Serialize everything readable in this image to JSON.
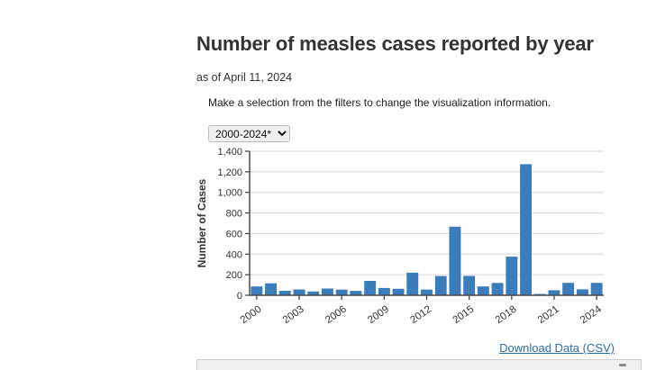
{
  "page": {
    "title": "Number of measles cases reported by year",
    "as_of": "as of April 11, 2024",
    "instruction": "Make a selection from the filters to change the visualization information.",
    "filter_value": "2000-2024*",
    "download_link": "Download Data (CSV)"
  },
  "colors": {
    "bar": "#3a7cbc",
    "grid": "#d8d8d8",
    "axis": "#4a4a4a",
    "tick_text": "#333333",
    "link": "#2a6fac"
  },
  "chart_data": {
    "type": "bar",
    "title": "",
    "xlabel": "",
    "ylabel": "Number of Cases",
    "ylim": [
      0,
      1400
    ],
    "ytick_step": 200,
    "grid": true,
    "legend": false,
    "x_tick_labels": [
      "2000",
      "2003",
      "2006",
      "2009",
      "2012",
      "2015",
      "2018",
      "2021",
      "2024"
    ],
    "categories": [
      2000,
      2001,
      2002,
      2003,
      2004,
      2005,
      2006,
      2007,
      2008,
      2009,
      2010,
      2011,
      2012,
      2013,
      2014,
      2015,
      2016,
      2017,
      2018,
      2019,
      2020,
      2021,
      2022,
      2023,
      2024
    ],
    "values": [
      86,
      116,
      44,
      56,
      37,
      66,
      55,
      43,
      140,
      71,
      63,
      220,
      55,
      187,
      667,
      188,
      86,
      120,
      375,
      1274,
      13,
      49,
      121,
      58,
      121
    ]
  }
}
